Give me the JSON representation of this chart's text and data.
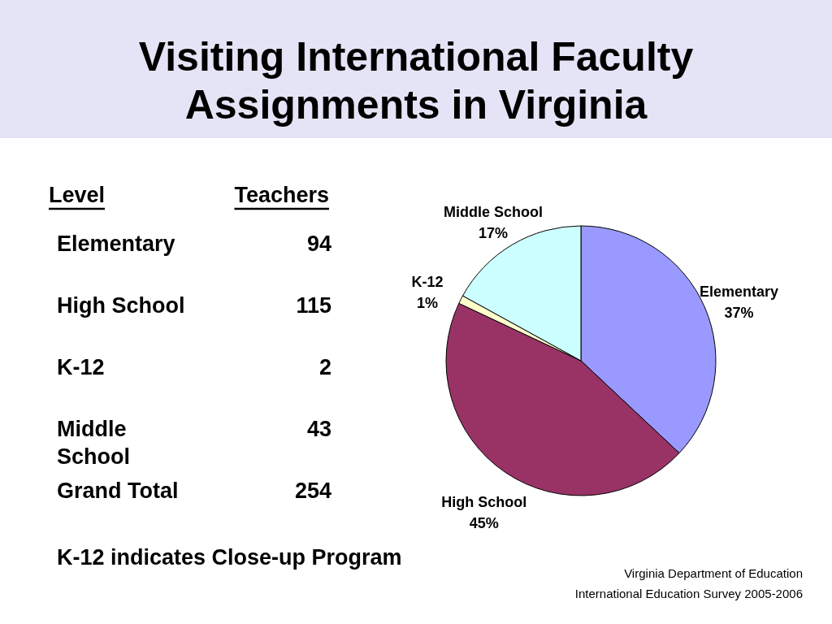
{
  "chart_data": [
    {
      "type": "other",
      "title": "Visiting International Faculty Assignments in Virginia",
      "xlabel": "Level",
      "ylabel": "Teachers",
      "categories": [
        "Elementary",
        "High School",
        "K-12",
        "Middle School"
      ],
      "values": [
        94,
        115,
        2,
        43
      ],
      "data_labels": true,
      "totals": [
        "254"
      ],
      "annotations": [
        "Grand Total",
        "K-12 indicates Close-up Program"
      ]
    },
    {
      "type": "pie",
      "categories": [
        "Elementary",
        "High School",
        "K-12",
        "Middle School"
      ],
      "values": [
        37,
        45,
        1,
        17
      ],
      "colors": [
        "#9999ff",
        "#993366",
        "#ffffcc",
        "#ccffff"
      ],
      "value_labels": [
        "37%",
        "45%",
        "1%",
        "17%"
      ],
      "annotations": [
        "Virginia Department of Education",
        "International Education Survey 2005-2006"
      ]
    }
  ]
}
